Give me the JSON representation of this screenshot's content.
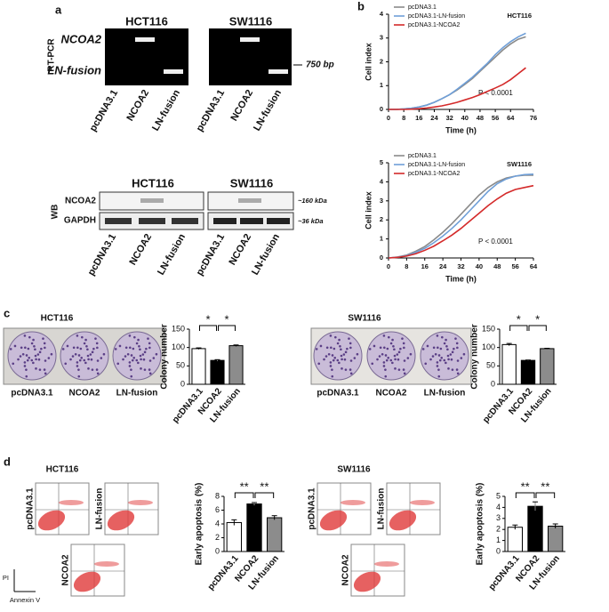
{
  "figure": {
    "a": {
      "label": "a",
      "rtpcr_label": "RT-PCR",
      "cell_lines": [
        "HCT116",
        "SW1116"
      ],
      "bands": [
        "NCOA2",
        "LN-fusion"
      ],
      "marker": "750 bp",
      "lanes": [
        "pcDNA3.1",
        "NCOA2",
        "LN-fusion"
      ],
      "wb_label": "WB",
      "wb_rows": [
        "NCOA2",
        "GAPDH"
      ],
      "wb_sizes": [
        "~160 kDa",
        "~36 kDa"
      ]
    },
    "b": {
      "label": "b"
    },
    "c": {
      "label": "c",
      "titles": [
        "HCT116",
        "SW1116"
      ],
      "plates": [
        "pcDNA3.1",
        "NCOA2",
        "LN-fusion"
      ]
    },
    "d": {
      "label": "d",
      "titles": [
        "HCT116",
        "SW1116"
      ],
      "flow": [
        "pcDNA3.1",
        "LN-fusion",
        "NCOA2"
      ],
      "axes": [
        "PI",
        "Annexin V"
      ]
    }
  },
  "chart_data": [
    {
      "type": "line",
      "title": "HCT116",
      "xlabel": "Time (h)",
      "ylabel": "Cell index",
      "annotation": "P < 0.0001",
      "x": [
        0,
        4,
        8,
        12,
        16,
        20,
        24,
        28,
        32,
        36,
        40,
        44,
        48,
        52,
        56,
        60,
        64,
        68,
        72
      ],
      "series": [
        {
          "name": "pcDNA3.1",
          "color": "#8a8a8a",
          "values": [
            0,
            0,
            0.02,
            0.05,
            0.1,
            0.18,
            0.3,
            0.45,
            0.62,
            0.82,
            1.05,
            1.3,
            1.6,
            1.9,
            2.2,
            2.5,
            2.75,
            2.95,
            3.05
          ]
        },
        {
          "name": "pcDNA3.1-LN-fusion",
          "color": "#6f9fd8",
          "values": [
            0,
            0,
            0.02,
            0.05,
            0.1,
            0.18,
            0.3,
            0.45,
            0.62,
            0.85,
            1.1,
            1.35,
            1.65,
            1.95,
            2.3,
            2.6,
            2.85,
            3.05,
            3.2
          ]
        },
        {
          "name": "pcDNA3.1-NCOA2",
          "color": "#d42a2a",
          "values": [
            0,
            0,
            0,
            0.01,
            0.03,
            0.06,
            0.1,
            0.15,
            0.22,
            0.3,
            0.4,
            0.5,
            0.62,
            0.76,
            0.9,
            1.05,
            1.25,
            1.5,
            1.75
          ]
        }
      ],
      "xlim": [
        0,
        76
      ],
      "xticks": [
        0,
        8,
        16,
        24,
        32,
        40,
        48,
        56,
        64,
        76
      ],
      "ylim": [
        0,
        4
      ],
      "yticks": [
        0,
        1,
        2,
        3,
        4
      ]
    },
    {
      "type": "line",
      "title": "SW1116",
      "xlabel": "Time (h)",
      "ylabel": "Cell index",
      "annotation": "P < 0.0001",
      "x": [
        0,
        4,
        8,
        12,
        16,
        20,
        24,
        28,
        32,
        36,
        40,
        44,
        48,
        52,
        56,
        60,
        64
      ],
      "series": [
        {
          "name": "pcDNA3.1",
          "color": "#8a8a8a",
          "values": [
            0,
            0.05,
            0.15,
            0.35,
            0.6,
            0.95,
            1.35,
            1.8,
            2.3,
            2.8,
            3.3,
            3.7,
            4.0,
            4.2,
            4.3,
            4.35,
            4.35
          ]
        },
        {
          "name": "pcDNA3.1-LN-fusion",
          "color": "#6f9fd8",
          "values": [
            0,
            0.04,
            0.12,
            0.3,
            0.5,
            0.8,
            1.15,
            1.55,
            2.0,
            2.5,
            3.0,
            3.5,
            3.9,
            4.15,
            4.3,
            4.38,
            4.4
          ]
        },
        {
          "name": "pcDNA3.1-NCOA2",
          "color": "#d42a2a",
          "values": [
            0,
            0.03,
            0.1,
            0.22,
            0.4,
            0.62,
            0.9,
            1.2,
            1.55,
            1.95,
            2.35,
            2.75,
            3.1,
            3.4,
            3.6,
            3.7,
            3.8
          ]
        }
      ],
      "xlim": [
        0,
        64
      ],
      "xticks": [
        0,
        8,
        16,
        24,
        32,
        40,
        48,
        56,
        64
      ],
      "ylim": [
        0,
        5
      ],
      "yticks": [
        0,
        1,
        2,
        3,
        4,
        5
      ]
    },
    {
      "type": "bar",
      "ylabel": "Colony number",
      "categories": [
        "pcDNA3.1",
        "NCOA2",
        "LN-fusion"
      ],
      "values": [
        97,
        65,
        105
      ],
      "errors": [
        2,
        2,
        2
      ],
      "colors": [
        "#ffffff",
        "#000000",
        "#8c8c8c"
      ],
      "ylim": [
        0,
        150
      ],
      "yticks": [
        0,
        50,
        100,
        150
      ],
      "significance": [
        "*",
        "*"
      ]
    },
    {
      "type": "bar",
      "ylabel": "Colony number",
      "categories": [
        "pcDNA3.1",
        "NCOA2",
        "LN-fusion"
      ],
      "values": [
        108,
        65,
        97
      ],
      "errors": [
        3,
        1,
        1
      ],
      "colors": [
        "#ffffff",
        "#000000",
        "#8c8c8c"
      ],
      "ylim": [
        0,
        150
      ],
      "yticks": [
        0,
        50,
        100,
        150
      ],
      "significance": [
        "*",
        "*"
      ]
    },
    {
      "type": "bar",
      "ylabel": "Early apoptosis (%)",
      "categories": [
        "pcDNA3.1",
        "NCOA2",
        "LN-fusion"
      ],
      "values": [
        4.2,
        6.9,
        4.9
      ],
      "errors": [
        0.4,
        0.2,
        0.3
      ],
      "colors": [
        "#ffffff",
        "#000000",
        "#8c8c8c"
      ],
      "ylim": [
        0,
        8
      ],
      "yticks": [
        0,
        2,
        4,
        6,
        8
      ],
      "significance": [
        "**",
        "**"
      ]
    },
    {
      "type": "bar",
      "ylabel": "Early apoptosis (%)",
      "categories": [
        "pcDNA3.1",
        "NCOA2",
        "LN-fusion"
      ],
      "values": [
        2.2,
        4.1,
        2.3
      ],
      "errors": [
        0.2,
        0.4,
        0.2
      ],
      "colors": [
        "#ffffff",
        "#000000",
        "#8c8c8c"
      ],
      "ylim": [
        0,
        5
      ],
      "yticks": [
        0,
        1,
        2,
        3,
        4,
        5
      ],
      "significance": [
        "**",
        "**"
      ]
    }
  ]
}
